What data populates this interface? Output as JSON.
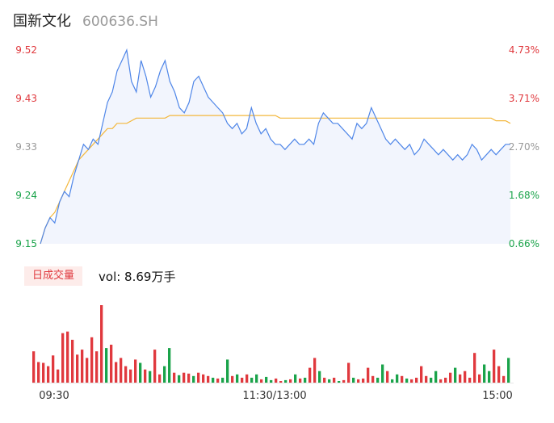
{
  "header": {
    "name": "国新文化",
    "code": "600636.SH"
  },
  "volume": {
    "badge": "日成交量",
    "label": "vol: 8.69万手"
  },
  "colors": {
    "price_line": "#4f86e8",
    "area_fill": "#f2f5fd",
    "avg_line": "#f3b73b",
    "up": "#e0393e",
    "down": "#1aa34a",
    "neutral": "#999999",
    "text": "#333333"
  },
  "chart_data": {
    "type": "line",
    "title": "",
    "xlabel": "",
    "ylabel": "",
    "ylim": [
      9.15,
      9.52
    ],
    "y_ticks_left": [
      "9.52",
      "9.43",
      "9.33",
      "9.24",
      "9.15"
    ],
    "y_ticks_right": [
      "4.73%",
      "3.71%",
      "2.70%",
      "1.68%",
      "0.66%"
    ],
    "x_ticks": [
      "09:30",
      "11:30/13:00",
      "15:00"
    ],
    "series": [
      {
        "key": "price",
        "values": [
          9.15,
          9.18,
          9.2,
          9.19,
          9.23,
          9.25,
          9.24,
          9.28,
          9.31,
          9.34,
          9.33,
          9.35,
          9.34,
          9.38,
          9.42,
          9.44,
          9.48,
          9.5,
          9.52,
          9.46,
          9.44,
          9.5,
          9.47,
          9.43,
          9.45,
          9.48,
          9.5,
          9.46,
          9.44,
          9.41,
          9.4,
          9.42,
          9.46,
          9.47,
          9.45,
          9.43,
          9.42,
          9.41,
          9.4,
          9.38,
          9.37,
          9.38,
          9.36,
          9.37,
          9.41,
          9.38,
          9.36,
          9.37,
          9.35,
          9.34,
          9.34,
          9.33,
          9.34,
          9.35,
          9.34,
          9.34,
          9.35,
          9.34,
          9.38,
          9.4,
          9.39,
          9.38,
          9.38,
          9.37,
          9.36,
          9.35,
          9.38,
          9.37,
          9.38,
          9.41,
          9.39,
          9.37,
          9.35,
          9.34,
          9.35,
          9.34,
          9.33,
          9.34,
          9.32,
          9.33,
          9.35,
          9.34,
          9.33,
          9.32,
          9.33,
          9.32,
          9.31,
          9.32,
          9.31,
          9.32,
          9.34,
          9.33,
          9.31,
          9.32,
          9.33,
          9.32,
          9.33,
          9.34,
          9.34
        ]
      },
      {
        "key": "average",
        "values": [
          9.15,
          9.18,
          9.2,
          9.21,
          9.23,
          9.25,
          9.27,
          9.29,
          9.31,
          9.32,
          9.33,
          9.34,
          9.35,
          9.36,
          9.37,
          9.37,
          9.38,
          9.38,
          9.38,
          9.385,
          9.39,
          9.39,
          9.39,
          9.39,
          9.39,
          9.39,
          9.39,
          9.395,
          9.395,
          9.395,
          9.395,
          9.395,
          9.395,
          9.395,
          9.395,
          9.395,
          9.395,
          9.395,
          9.395,
          9.395,
          9.395,
          9.395,
          9.395,
          9.395,
          9.395,
          9.395,
          9.395,
          9.395,
          9.395,
          9.395,
          9.39,
          9.39,
          9.39,
          9.39,
          9.39,
          9.39,
          9.39,
          9.39,
          9.39,
          9.39,
          9.39,
          9.39,
          9.39,
          9.39,
          9.39,
          9.39,
          9.39,
          9.39,
          9.39,
          9.39,
          9.39,
          9.39,
          9.39,
          9.39,
          9.39,
          9.39,
          9.39,
          9.39,
          9.39,
          9.39,
          9.39,
          9.39,
          9.39,
          9.39,
          9.39,
          9.39,
          9.39,
          9.39,
          9.39,
          9.39,
          9.39,
          9.39,
          9.39,
          9.39,
          9.39,
          9.385,
          9.385,
          9.385,
          9.38
        ]
      }
    ],
    "volume_bars": [
      {
        "v": 38,
        "c": "up"
      },
      {
        "v": 25,
        "c": "up"
      },
      {
        "v": 24,
        "c": "up"
      },
      {
        "v": 20,
        "c": "up"
      },
      {
        "v": 33,
        "c": "up"
      },
      {
        "v": 16,
        "c": "up"
      },
      {
        "v": 60,
        "c": "up"
      },
      {
        "v": 62,
        "c": "up"
      },
      {
        "v": 52,
        "c": "up"
      },
      {
        "v": 34,
        "c": "up"
      },
      {
        "v": 40,
        "c": "up"
      },
      {
        "v": 30,
        "c": "up"
      },
      {
        "v": 55,
        "c": "up"
      },
      {
        "v": 38,
        "c": "up"
      },
      {
        "v": 94,
        "c": "up"
      },
      {
        "v": 42,
        "c": "down"
      },
      {
        "v": 46,
        "c": "up"
      },
      {
        "v": 25,
        "c": "up"
      },
      {
        "v": 30,
        "c": "up"
      },
      {
        "v": 20,
        "c": "up"
      },
      {
        "v": 16,
        "c": "up"
      },
      {
        "v": 28,
        "c": "up"
      },
      {
        "v": 24,
        "c": "down"
      },
      {
        "v": 16,
        "c": "up"
      },
      {
        "v": 14,
        "c": "down"
      },
      {
        "v": 40,
        "c": "up"
      },
      {
        "v": 10,
        "c": "up"
      },
      {
        "v": 20,
        "c": "down"
      },
      {
        "v": 42,
        "c": "down"
      },
      {
        "v": 12,
        "c": "up"
      },
      {
        "v": 9,
        "c": "down"
      },
      {
        "v": 12,
        "c": "up"
      },
      {
        "v": 11,
        "c": "up"
      },
      {
        "v": 8,
        "c": "down"
      },
      {
        "v": 12,
        "c": "up"
      },
      {
        "v": 10,
        "c": "up"
      },
      {
        "v": 8,
        "c": "up"
      },
      {
        "v": 6,
        "c": "down"
      },
      {
        "v": 5,
        "c": "up"
      },
      {
        "v": 6,
        "c": "down"
      },
      {
        "v": 28,
        "c": "down"
      },
      {
        "v": 8,
        "c": "up"
      },
      {
        "v": 10,
        "c": "down"
      },
      {
        "v": 6,
        "c": "up"
      },
      {
        "v": 10,
        "c": "up"
      },
      {
        "v": 6,
        "c": "down"
      },
      {
        "v": 10,
        "c": "down"
      },
      {
        "v": 4,
        "c": "up"
      },
      {
        "v": 7,
        "c": "down"
      },
      {
        "v": 3,
        "c": "down"
      },
      {
        "v": 5,
        "c": "up"
      },
      {
        "v": 2,
        "c": "up"
      },
      {
        "v": 3,
        "c": "down"
      },
      {
        "v": 4,
        "c": "up"
      },
      {
        "v": 10,
        "c": "down"
      },
      {
        "v": 5,
        "c": "up"
      },
      {
        "v": 6,
        "c": "down"
      },
      {
        "v": 18,
        "c": "up"
      },
      {
        "v": 30,
        "c": "up"
      },
      {
        "v": 14,
        "c": "down"
      },
      {
        "v": 6,
        "c": "up"
      },
      {
        "v": 4,
        "c": "down"
      },
      {
        "v": 6,
        "c": "up"
      },
      {
        "v": 2,
        "c": "down"
      },
      {
        "v": 3,
        "c": "up"
      },
      {
        "v": 24,
        "c": "up"
      },
      {
        "v": 6,
        "c": "down"
      },
      {
        "v": 4,
        "c": "up"
      },
      {
        "v": 5,
        "c": "up"
      },
      {
        "v": 18,
        "c": "up"
      },
      {
        "v": 8,
        "c": "up"
      },
      {
        "v": 6,
        "c": "down"
      },
      {
        "v": 22,
        "c": "down"
      },
      {
        "v": 14,
        "c": "up"
      },
      {
        "v": 4,
        "c": "down"
      },
      {
        "v": 10,
        "c": "down"
      },
      {
        "v": 8,
        "c": "up"
      },
      {
        "v": 5,
        "c": "down"
      },
      {
        "v": 4,
        "c": "up"
      },
      {
        "v": 6,
        "c": "up"
      },
      {
        "v": 20,
        "c": "up"
      },
      {
        "v": 8,
        "c": "up"
      },
      {
        "v": 6,
        "c": "down"
      },
      {
        "v": 14,
        "c": "down"
      },
      {
        "v": 4,
        "c": "up"
      },
      {
        "v": 6,
        "c": "up"
      },
      {
        "v": 12,
        "c": "up"
      },
      {
        "v": 18,
        "c": "down"
      },
      {
        "v": 10,
        "c": "up"
      },
      {
        "v": 14,
        "c": "up"
      },
      {
        "v": 6,
        "c": "up"
      },
      {
        "v": 36,
        "c": "up"
      },
      {
        "v": 10,
        "c": "up"
      },
      {
        "v": 22,
        "c": "down"
      },
      {
        "v": 14,
        "c": "down"
      },
      {
        "v": 40,
        "c": "up"
      },
      {
        "v": 20,
        "c": "up"
      },
      {
        "v": 8,
        "c": "up"
      },
      {
        "v": 30,
        "c": "down"
      }
    ]
  }
}
